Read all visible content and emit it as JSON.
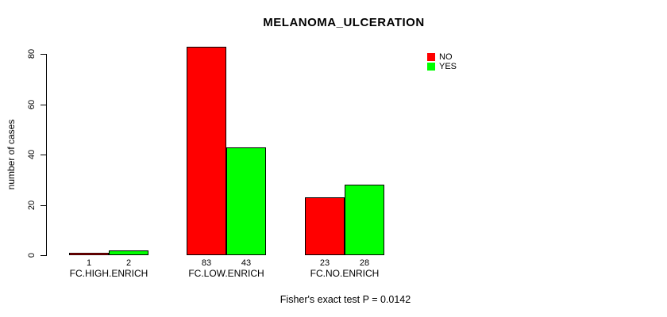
{
  "chart_data": {
    "type": "bar",
    "title": "MELANOMA_ULCERATION",
    "ylabel": "number of cases",
    "xlabel": "",
    "categories": [
      "FC.HIGH.ENRICH",
      "FC.LOW.ENRICH",
      "FC.NO.ENRICH"
    ],
    "series": [
      {
        "name": "NO",
        "color": "#ff0000",
        "values": [
          1,
          83,
          23
        ]
      },
      {
        "name": "YES",
        "color": "#00ff00",
        "values": [
          2,
          43,
          28
        ]
      }
    ],
    "bar_value_labels": [
      [
        "1",
        "83",
        "23"
      ],
      [
        "2",
        "43",
        "28"
      ]
    ],
    "yticks": [
      0,
      20,
      40,
      60,
      80
    ],
    "ylim": [
      0,
      85
    ],
    "grid": false,
    "legend_position": "top-right",
    "bar_border_color": "#000000",
    "footer": "Fisher's exact test P = 0.0142"
  }
}
